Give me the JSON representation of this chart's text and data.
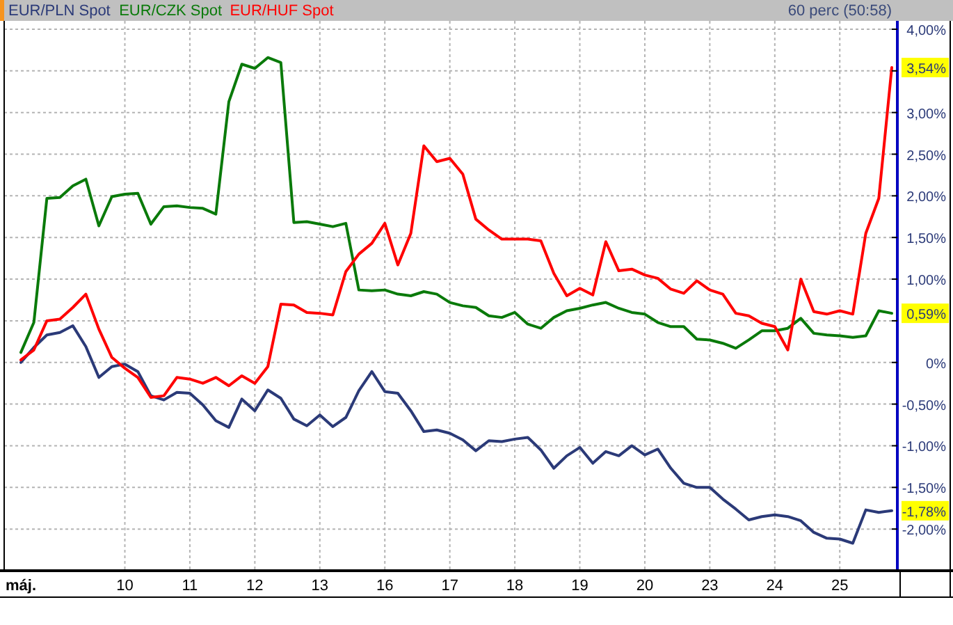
{
  "chart_data": {
    "type": "line",
    "subtitle": "60 perc (50:58)",
    "legend": "top left",
    "grid": true,
    "marker": "none",
    "line_style": "solid",
    "categories": [
      "máj.",
      null,
      null,
      null,
      null,
      null,
      null,
      null,
      "10",
      null,
      null,
      null,
      null,
      "11",
      null,
      null,
      null,
      null,
      "12",
      null,
      null,
      null,
      null,
      "13",
      null,
      null,
      null,
      null,
      "16",
      null,
      null,
      null,
      null,
      "17",
      null,
      null,
      null,
      null,
      "18",
      null,
      null,
      null,
      null,
      "19",
      null,
      null,
      null,
      null,
      "20",
      null,
      null,
      null,
      null,
      "23",
      null,
      null,
      null,
      null,
      "24",
      null,
      null,
      null,
      null,
      "25",
      null,
      null,
      null,
      null
    ],
    "ylim": [
      -2.5,
      4.1
    ],
    "yticks": [
      {
        "value": 4,
        "label": "4,00%"
      },
      {
        "value": 3.5,
        "label": null
      },
      {
        "value": 3,
        "label": "3,00%"
      },
      {
        "value": 2.5,
        "label": "2,50%"
      },
      {
        "value": 2,
        "label": "2,00%"
      },
      {
        "value": 1.5,
        "label": "1,50%"
      },
      {
        "value": 1,
        "label": "1,00%"
      },
      {
        "value": 0.5,
        "label": null
      },
      {
        "value": 0,
        "label": "0%"
      },
      {
        "value": -0.5,
        "label": "-0,50%"
      },
      {
        "value": -1,
        "label": "-1,00%"
      },
      {
        "value": -1.5,
        "label": "-1,50%"
      },
      {
        "value": -2,
        "label": "-2,00%"
      }
    ],
    "annotations": [
      "-1,78%",
      "0,59%",
      "3,54%"
    ],
    "series": [
      {
        "name": "EUR/PLN Spot",
        "color": "#2b3a78",
        "values": [
          0,
          0.18,
          0.33,
          0.36,
          0.44,
          0.19,
          -0.18,
          -0.05,
          -0.02,
          -0.11,
          -0.4,
          -0.45,
          -0.36,
          -0.37,
          -0.51,
          -0.7,
          -0.78,
          -0.44,
          -0.58,
          -0.33,
          -0.43,
          -0.68,
          -0.76,
          -0.63,
          -0.77,
          -0.66,
          -0.34,
          -0.11,
          -0.35,
          -0.37,
          -0.58,
          -0.83,
          -0.81,
          -0.85,
          -0.93,
          -1.06,
          -0.94,
          -0.95,
          -0.92,
          -0.9,
          -1.05,
          -1.27,
          -1.12,
          -1.02,
          -1.21,
          -1.07,
          -1.12,
          -1.0,
          -1.11,
          -1.04,
          -1.27,
          -1.45,
          -1.5,
          -1.5,
          -1.64,
          -1.76,
          -1.89,
          -1.85,
          -1.83,
          -1.85,
          -1.9,
          -2.04,
          -2.11,
          -2.12,
          -2.17,
          -1.77,
          -1.8,
          -1.78
        ]
      },
      {
        "name": "EUR/CZK Spot",
        "color": "#0a7a0a",
        "values": [
          0.12,
          0.48,
          1.97,
          1.98,
          2.12,
          2.2,
          1.64,
          1.99,
          2.02,
          2.03,
          1.66,
          1.87,
          1.88,
          1.86,
          1.85,
          1.78,
          3.13,
          3.58,
          3.53,
          3.66,
          3.6,
          1.68,
          1.69,
          1.66,
          1.63,
          1.67,
          0.87,
          0.86,
          0.87,
          0.82,
          0.8,
          0.85,
          0.82,
          0.72,
          0.68,
          0.66,
          0.56,
          0.54,
          0.6,
          0.46,
          0.41,
          0.54,
          0.62,
          0.65,
          0.69,
          0.72,
          0.65,
          0.6,
          0.58,
          0.48,
          0.43,
          0.43,
          0.28,
          0.27,
          0.23,
          0.17,
          0.27,
          0.38,
          0.38,
          0.41,
          0.53,
          0.35,
          0.33,
          0.32,
          0.3,
          0.32,
          0.62,
          0.59
        ]
      },
      {
        "name": "EUR/HUF Spot",
        "color": "#ff0000",
        "values": [
          0.03,
          0.15,
          0.5,
          0.52,
          0.66,
          0.82,
          0.4,
          0.06,
          -0.07,
          -0.18,
          -0.42,
          -0.4,
          -0.18,
          -0.2,
          -0.25,
          -0.18,
          -0.28,
          -0.16,
          -0.25,
          -0.05,
          0.7,
          0.69,
          0.6,
          0.59,
          0.57,
          1.09,
          1.3,
          1.43,
          1.67,
          1.17,
          1.55,
          2.6,
          2.41,
          2.45,
          2.26,
          1.72,
          1.59,
          1.48,
          1.48,
          1.48,
          1.46,
          1.07,
          0.8,
          0.89,
          0.81,
          1.45,
          1.1,
          1.12,
          1.05,
          1.01,
          0.88,
          0.83,
          0.98,
          0.87,
          0.82,
          0.59,
          0.56,
          0.47,
          0.43,
          0.15,
          1.0,
          0.61,
          0.58,
          0.62,
          0.58,
          1.55,
          1.97,
          3.54
        ]
      }
    ]
  }
}
